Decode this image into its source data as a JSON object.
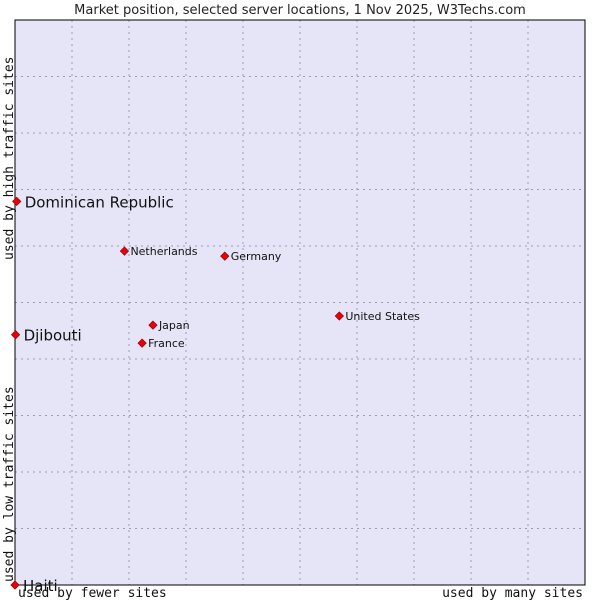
{
  "chart_data": {
    "type": "scatter",
    "title": "Market position, selected server locations, 1 Nov 2025, W3Techs.com",
    "xlabel_left": "used by fewer sites",
    "xlabel_right": "used by many sites",
    "ylabel_bottom": "used by low traffic sites",
    "ylabel_top": "used by high traffic sites",
    "xlim": [
      0,
      100
    ],
    "ylim": [
      0,
      100
    ],
    "grid": true,
    "colors": {
      "plot_bg": "#e5e5f7",
      "border": "#000000",
      "marker": "#e8000b",
      "marker_outline": "#8b0000"
    },
    "points": [
      {
        "name": "Dominican Republic",
        "x": 0.3,
        "y": 67.9,
        "label_size": "large"
      },
      {
        "name": "Netherlands",
        "x": 19.2,
        "y": 59.1,
        "label_size": "small"
      },
      {
        "name": "Germany",
        "x": 36.8,
        "y": 58.2,
        "label_size": "small"
      },
      {
        "name": "United States",
        "x": 56.9,
        "y": 47.6,
        "label_size": "small"
      },
      {
        "name": "Djibouti",
        "x": 0.1,
        "y": 44.3,
        "label_size": "large"
      },
      {
        "name": "Japan",
        "x": 24.2,
        "y": 46.0,
        "label_size": "small"
      },
      {
        "name": "France",
        "x": 22.3,
        "y": 42.8,
        "label_size": "small"
      },
      {
        "name": "Haiti",
        "x": 0.0,
        "y": 0.0,
        "label_size": "large"
      }
    ]
  }
}
